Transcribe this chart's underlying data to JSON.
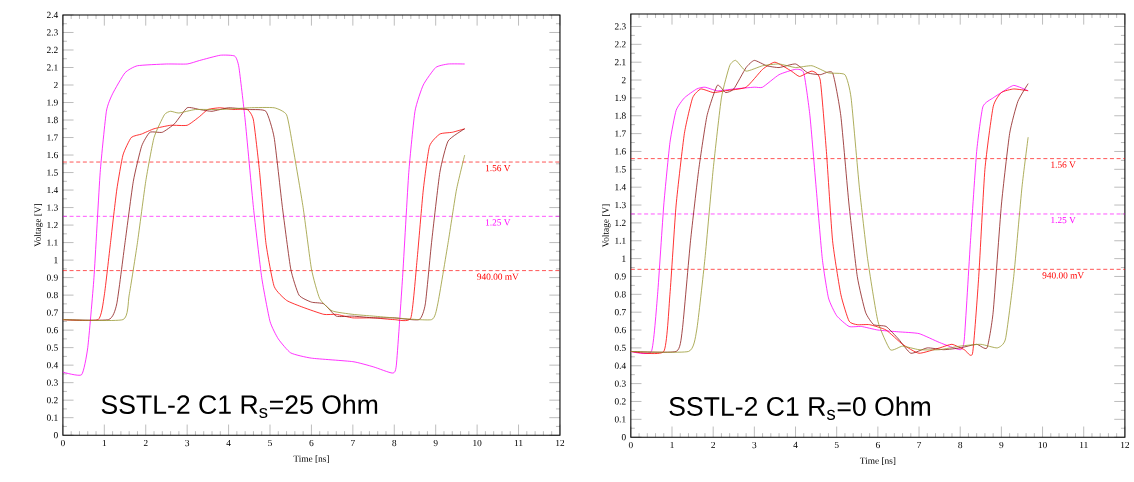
{
  "chart_data": [
    {
      "type": "line",
      "xlabel": "Time [ns]",
      "ylabel": "Voltage [V]",
      "xlim": [
        0,
        12
      ],
      "ylim": [
        0,
        2.4
      ],
      "xticks": [
        0,
        1,
        2,
        3,
        4,
        5,
        6,
        7,
        8,
        9,
        10,
        11,
        12
      ],
      "yticks": [
        0,
        0.1,
        0.2,
        0.3,
        0.4,
        0.5,
        0.6,
        0.7,
        0.8,
        0.9,
        1,
        1.1,
        1.2,
        1.3,
        1.4,
        1.5,
        1.6,
        1.7,
        1.8,
        1.9,
        2,
        2.1,
        2.2,
        2.3,
        2.4
      ],
      "annotations": [
        "SSTL-2 C1  R$_{s}$=25 Ohm"
      ],
      "ref_lines": [
        {
          "axis": "y",
          "value": 1.56,
          "label": "1.56 V",
          "color": "#ff0000",
          "line_style": "dashed"
        },
        {
          "axis": "y",
          "value": 1.25,
          "label": "1.25 V",
          "color": "#ff00ff",
          "line_style": "dashed"
        },
        {
          "axis": "y",
          "value": 0.94,
          "label": "940.00 mV",
          "color": "#ff0000",
          "line_style": "dashed"
        }
      ],
      "series": [
        {
          "color": "#ff00ff",
          "x": [
            0,
            0.45,
            0.6,
            0.75,
            0.9,
            1.05,
            1.2,
            1.5,
            1.8,
            2.5,
            3.0,
            3.3,
            3.8,
            4.15,
            4.25,
            4.4,
            4.6,
            4.8,
            5.0,
            5.2,
            5.5,
            6.0,
            7.0,
            7.5,
            7.95,
            8.05,
            8.2,
            8.35,
            8.5,
            8.7,
            9.0,
            9.3,
            9.7
          ],
          "values": [
            0.36,
            0.345,
            0.5,
            0.9,
            1.5,
            1.85,
            1.95,
            2.07,
            2.11,
            2.12,
            2.12,
            2.14,
            2.17,
            2.165,
            2.1,
            1.8,
            1.3,
            0.9,
            0.65,
            0.55,
            0.47,
            0.44,
            0.42,
            0.39,
            0.355,
            0.4,
            0.9,
            1.5,
            1.85,
            2.0,
            2.1,
            2.12,
            2.12
          ]
        },
        {
          "color": "#ff0000",
          "x": [
            0,
            0.85,
            1.0,
            1.15,
            1.3,
            1.45,
            1.65,
            1.9,
            2.2,
            2.6,
            3.0,
            3.3,
            3.5,
            3.8,
            4.1,
            4.45,
            4.6,
            4.75,
            4.9,
            5.1,
            5.4,
            5.8,
            6.3,
            6.6,
            7.0,
            7.5,
            8.0,
            8.4,
            8.55,
            8.7,
            8.85,
            9.1,
            9.4,
            9.7
          ],
          "values": [
            0.66,
            0.66,
            0.8,
            1.1,
            1.4,
            1.6,
            1.7,
            1.72,
            1.75,
            1.77,
            1.77,
            1.82,
            1.86,
            1.87,
            1.86,
            1.86,
            1.8,
            1.5,
            1.1,
            0.85,
            0.77,
            0.73,
            0.69,
            0.69,
            0.67,
            0.67,
            0.66,
            0.67,
            1.0,
            1.4,
            1.65,
            1.72,
            1.73,
            1.75
          ]
        },
        {
          "color": "#8b1a1a",
          "x": [
            0,
            1.1,
            1.3,
            1.5,
            1.7,
            1.9,
            2.1,
            2.4,
            2.7,
            3.0,
            3.3,
            3.6,
            4.0,
            4.5,
            4.9,
            5.1,
            5.3,
            5.5,
            5.7,
            6.0,
            6.3,
            6.6,
            7.0,
            7.5,
            8.0,
            8.6,
            8.75,
            8.9,
            9.1,
            9.3,
            9.7
          ],
          "values": [
            0.66,
            0.66,
            0.75,
            1.1,
            1.45,
            1.65,
            1.73,
            1.73,
            1.78,
            1.87,
            1.86,
            1.85,
            1.87,
            1.86,
            1.85,
            1.7,
            1.3,
            0.95,
            0.8,
            0.76,
            0.75,
            0.68,
            0.68,
            0.67,
            0.67,
            0.66,
            0.75,
            1.1,
            1.5,
            1.68,
            1.75
          ]
        },
        {
          "color": "#999933",
          "x": [
            0,
            1.45,
            1.6,
            1.8,
            2.0,
            2.2,
            2.45,
            2.6,
            2.8,
            3.2,
            3.8,
            4.5,
            5.1,
            5.4,
            5.55,
            5.8,
            6.0,
            6.2,
            6.5,
            7.0,
            7.5,
            8.0,
            8.9,
            9.05,
            9.3,
            9.5,
            9.7
          ],
          "values": [
            0.66,
            0.66,
            0.8,
            1.1,
            1.45,
            1.7,
            1.83,
            1.85,
            1.84,
            1.86,
            1.86,
            1.87,
            1.87,
            1.83,
            1.65,
            1.3,
            0.95,
            0.78,
            0.71,
            0.69,
            0.68,
            0.67,
            0.66,
            0.75,
            1.1,
            1.4,
            1.6
          ]
        }
      ]
    },
    {
      "type": "line",
      "xlabel": "Time [ns]",
      "ylabel": "Voltage [V]",
      "xlim": [
        0,
        12
      ],
      "ylim": [
        0,
        2.37
      ],
      "xticks": [
        0,
        1,
        2,
        3,
        4,
        5,
        6,
        7,
        8,
        9,
        10,
        11,
        12
      ],
      "yticks": [
        0,
        0.1,
        0.2,
        0.3,
        0.4,
        0.5,
        0.6,
        0.7,
        0.8,
        0.9,
        1,
        1.1,
        1.2,
        1.3,
        1.4,
        1.5,
        1.6,
        1.7,
        1.8,
        1.9,
        2,
        2.1,
        2.2,
        2.3
      ],
      "annotations": [
        "SSTL-2 C1  R$_{s}$=0 Ohm"
      ],
      "ref_lines": [
        {
          "axis": "y",
          "value": 1.56,
          "label": "1.56 V",
          "color": "#ff0000",
          "line_style": "dashed"
        },
        {
          "axis": "y",
          "value": 1.25,
          "label": "1.25 V",
          "color": "#ff00ff",
          "line_style": "dashed"
        },
        {
          "axis": "y",
          "value": 0.94,
          "label": "940.00 mV",
          "color": "#ff0000",
          "line_style": "dashed"
        }
      ],
      "series": [
        {
          "color": "#ff00ff",
          "x": [
            0,
            0.5,
            0.65,
            0.8,
            0.95,
            1.1,
            1.3,
            1.6,
            1.8,
            2.1,
            2.5,
            3.0,
            3.2,
            3.6,
            4.0,
            4.2,
            4.35,
            4.5,
            4.65,
            4.8,
            5.0,
            5.3,
            5.6,
            6.0,
            6.5,
            7.0,
            7.5,
            8.0,
            8.1,
            8.25,
            8.4,
            8.55,
            8.8,
            9.0,
            9.3,
            9.65
          ],
          "values": [
            0.48,
            0.48,
            0.8,
            1.3,
            1.65,
            1.83,
            1.9,
            1.95,
            1.96,
            1.94,
            1.95,
            1.96,
            1.96,
            2.03,
            2.06,
            2.04,
            1.8,
            1.4,
            1.0,
            0.78,
            0.68,
            0.62,
            0.62,
            0.6,
            0.59,
            0.58,
            0.53,
            0.49,
            0.55,
            1.1,
            1.6,
            1.85,
            1.9,
            1.93,
            1.97,
            1.94
          ]
        },
        {
          "color": "#ff0000",
          "x": [
            0,
            0.8,
            0.95,
            1.1,
            1.3,
            1.5,
            1.7,
            2.0,
            2.3,
            2.8,
            3.2,
            3.5,
            3.9,
            4.1,
            4.4,
            4.6,
            4.75,
            4.9,
            5.1,
            5.3,
            5.5,
            5.8,
            6.2,
            6.6,
            7.0,
            7.5,
            7.8,
            8.1,
            8.3,
            8.45,
            8.6,
            8.8,
            9.0,
            9.3,
            9.65
          ],
          "values": [
            0.48,
            0.48,
            0.8,
            1.3,
            1.7,
            1.9,
            1.95,
            1.93,
            1.94,
            1.96,
            2.06,
            2.1,
            2.05,
            2.02,
            2.05,
            2.0,
            1.6,
            1.1,
            0.8,
            0.65,
            0.63,
            0.63,
            0.6,
            0.52,
            0.47,
            0.5,
            0.52,
            0.49,
            0.47,
            0.9,
            1.5,
            1.85,
            1.93,
            1.95,
            1.94
          ]
        },
        {
          "color": "#8b1a1a",
          "x": [
            0,
            1.1,
            1.25,
            1.45,
            1.65,
            1.85,
            2.1,
            2.3,
            2.5,
            2.8,
            3.0,
            3.3,
            3.6,
            4.0,
            4.3,
            4.6,
            4.9,
            5.1,
            5.3,
            5.5,
            5.7,
            5.9,
            6.2,
            6.5,
            6.8,
            7.2,
            7.6,
            8.0,
            8.4,
            8.65,
            8.8,
            9.0,
            9.2,
            9.4,
            9.65
          ],
          "values": [
            0.48,
            0.48,
            0.6,
            1.1,
            1.5,
            1.8,
            1.97,
            1.93,
            1.95,
            2.07,
            2.11,
            2.08,
            2.07,
            2.09,
            2.04,
            2.03,
            2.04,
            1.8,
            1.3,
            0.9,
            0.7,
            0.63,
            0.62,
            0.55,
            0.47,
            0.5,
            0.49,
            0.5,
            0.52,
            0.5,
            0.7,
            1.3,
            1.7,
            1.88,
            1.98
          ]
        },
        {
          "color": "#999933",
          "x": [
            0,
            1.4,
            1.6,
            1.8,
            2.0,
            2.2,
            2.4,
            2.55,
            2.8,
            3.2,
            3.6,
            4.0,
            4.4,
            4.8,
            5.2,
            5.35,
            5.55,
            5.75,
            6.0,
            6.3,
            6.6,
            7.0,
            7.5,
            8.0,
            8.5,
            8.9,
            9.1,
            9.3,
            9.5,
            9.65
          ],
          "values": [
            0.48,
            0.48,
            0.6,
            1.0,
            1.5,
            1.9,
            2.08,
            2.11,
            2.05,
            2.08,
            2.09,
            2.07,
            2.08,
            2.04,
            2.03,
            1.9,
            1.4,
            1.0,
            0.65,
            0.49,
            0.51,
            0.49,
            0.49,
            0.51,
            0.52,
            0.5,
            0.55,
            0.9,
            1.4,
            1.68
          ]
        }
      ]
    }
  ]
}
